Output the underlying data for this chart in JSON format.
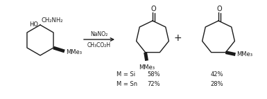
{
  "bg_color": "#ffffff",
  "line_color": "#1a1a1a",
  "line_width": 1.0,
  "fig_width": 3.85,
  "fig_height": 1.43,
  "dpi": 100,
  "reagents_line1": "NaNO₂",
  "reagents_line2": "CH₃CO₂H",
  "plus_sign": "+",
  "label_msi": "M = Si",
  "label_msi_p1": "58%",
  "label_msi_p2": "42%",
  "label_msn": "M = Sn",
  "label_msn_p1": "72%",
  "label_msn_p2": "28%",
  "font_size_main": 6.0,
  "font_size_O": 7.0,
  "font_size_label": 6.0,
  "font_size_plus": 10.0
}
